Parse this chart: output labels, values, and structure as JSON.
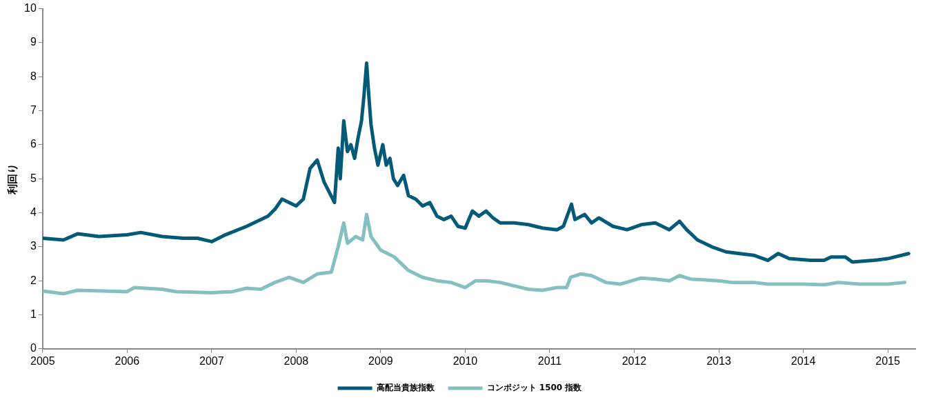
{
  "chart_data": {
    "type": "line",
    "ylabel": "利回り",
    "xlim": [
      "2005-01-01",
      "2015-04-30"
    ],
    "xticks": [
      "2005",
      "2006",
      "2007",
      "2008",
      "2009",
      "2010",
      "2011",
      "2012",
      "2013",
      "2014",
      "2015"
    ],
    "ylim": [
      0,
      10
    ],
    "yticks": [
      0,
      1,
      2,
      3,
      4,
      5,
      6,
      7,
      8,
      9,
      10
    ],
    "grid": false,
    "legend": "bottom",
    "marker": "none",
    "line_style": "solid",
    "series": [
      {
        "name": "高配当貴族指数",
        "color": "#025a78",
        "x": [
          "2005-01-01",
          "2005-04-01",
          "2005-06-01",
          "2005-09-01",
          "2006-01-01",
          "2006-03-01",
          "2006-06-01",
          "2006-09-01",
          "2006-11-01",
          "2007-01-01",
          "2007-03-01",
          "2007-06-01",
          "2007-09-01",
          "2007-10-01",
          "2007-11-01",
          "2008-01-01",
          "2008-02-01",
          "2008-03-01",
          "2008-04-01",
          "2008-05-01",
          "2008-06-15",
          "2008-07-01",
          "2008-07-10",
          "2008-07-25",
          "2008-08-10",
          "2008-08-25",
          "2008-09-10",
          "2008-09-25",
          "2008-10-10",
          "2008-10-20",
          "2008-11-01",
          "2008-11-10",
          "2008-11-20",
          "2008-12-05",
          "2008-12-20",
          "2009-01-10",
          "2009-01-25",
          "2009-02-10",
          "2009-02-25",
          "2009-03-15",
          "2009-04-10",
          "2009-05-01",
          "2009-06-01",
          "2009-07-01",
          "2009-08-01",
          "2009-09-01",
          "2009-10-01",
          "2009-11-01",
          "2009-12-01",
          "2010-01-01",
          "2010-02-01",
          "2010-03-01",
          "2010-04-01",
          "2010-05-01",
          "2010-06-01",
          "2010-08-01",
          "2010-10-01",
          "2010-12-01",
          "2011-02-01",
          "2011-03-01",
          "2011-04-05",
          "2011-04-20",
          "2011-06-01",
          "2011-07-01",
          "2011-08-01",
          "2011-10-01",
          "2011-12-01",
          "2012-02-01",
          "2012-04-01",
          "2012-06-01",
          "2012-07-15",
          "2012-08-15",
          "2012-10-01",
          "2012-12-01",
          "2013-02-01",
          "2013-04-01",
          "2013-06-01",
          "2013-08-01",
          "2013-09-15",
          "2013-11-01",
          "2014-02-01",
          "2014-04-01",
          "2014-05-01",
          "2014-07-01",
          "2014-08-01",
          "2014-11-01",
          "2015-01-01",
          "2015-04-01"
        ],
        "values": [
          3.25,
          3.2,
          3.38,
          3.3,
          3.35,
          3.42,
          3.3,
          3.25,
          3.25,
          3.15,
          3.35,
          3.6,
          3.9,
          4.1,
          4.4,
          4.2,
          4.4,
          5.3,
          5.55,
          4.9,
          4.3,
          5.9,
          5.0,
          6.7,
          5.8,
          6.0,
          5.6,
          6.2,
          6.7,
          7.4,
          8.4,
          7.5,
          6.6,
          5.9,
          5.4,
          6.0,
          5.4,
          5.6,
          5.0,
          4.8,
          5.1,
          4.5,
          4.4,
          4.2,
          4.3,
          3.9,
          3.8,
          3.9,
          3.6,
          3.55,
          4.05,
          3.9,
          4.05,
          3.85,
          3.7,
          3.7,
          3.65,
          3.55,
          3.5,
          3.6,
          4.25,
          3.8,
          3.95,
          3.7,
          3.85,
          3.6,
          3.5,
          3.65,
          3.7,
          3.5,
          3.75,
          3.5,
          3.2,
          3.0,
          2.85,
          2.8,
          2.75,
          2.6,
          2.8,
          2.65,
          2.6,
          2.6,
          2.7,
          2.7,
          2.55,
          2.6,
          2.65,
          2.8
        ]
      },
      {
        "name": "コンポジット 1500 指数",
        "color": "#85bfc1",
        "x": [
          "2005-01-01",
          "2005-04-01",
          "2005-06-01",
          "2006-01-01",
          "2006-02-01",
          "2006-06-01",
          "2006-08-01",
          "2007-01-01",
          "2007-04-01",
          "2007-06-01",
          "2007-08-01",
          "2007-10-01",
          "2007-12-01",
          "2008-02-01",
          "2008-04-01",
          "2008-06-01",
          "2008-07-01",
          "2008-07-25",
          "2008-08-10",
          "2008-09-15",
          "2008-10-15",
          "2008-11-01",
          "2008-11-20",
          "2009-01-01",
          "2009-03-01",
          "2009-05-01",
          "2009-07-01",
          "2009-09-01",
          "2009-11-01",
          "2010-01-01",
          "2010-02-15",
          "2010-04-01",
          "2010-06-01",
          "2010-08-01",
          "2010-10-01",
          "2010-12-01",
          "2011-02-01",
          "2011-03-15",
          "2011-04-01",
          "2011-05-15",
          "2011-07-01",
          "2011-09-01",
          "2011-11-01",
          "2012-02-01",
          "2012-04-01",
          "2012-06-01",
          "2012-07-15",
          "2012-09-01",
          "2013-01-01",
          "2013-03-01",
          "2013-06-01",
          "2013-08-01",
          "2014-01-01",
          "2014-04-01",
          "2014-06-01",
          "2014-09-01",
          "2015-01-01",
          "2015-03-15"
        ],
        "values": [
          1.7,
          1.62,
          1.72,
          1.68,
          1.8,
          1.75,
          1.68,
          1.65,
          1.68,
          1.78,
          1.75,
          1.95,
          2.1,
          1.95,
          2.2,
          2.25,
          3.0,
          3.7,
          3.1,
          3.3,
          3.2,
          3.95,
          3.3,
          2.9,
          2.7,
          2.3,
          2.1,
          2.0,
          1.95,
          1.8,
          2.0,
          2.0,
          1.95,
          1.85,
          1.75,
          1.72,
          1.8,
          1.8,
          2.1,
          2.2,
          2.15,
          1.95,
          1.9,
          2.08,
          2.05,
          2.0,
          2.15,
          2.05,
          2.0,
          1.95,
          1.95,
          1.9,
          1.9,
          1.88,
          1.95,
          1.9,
          1.9,
          1.95
        ]
      }
    ]
  }
}
